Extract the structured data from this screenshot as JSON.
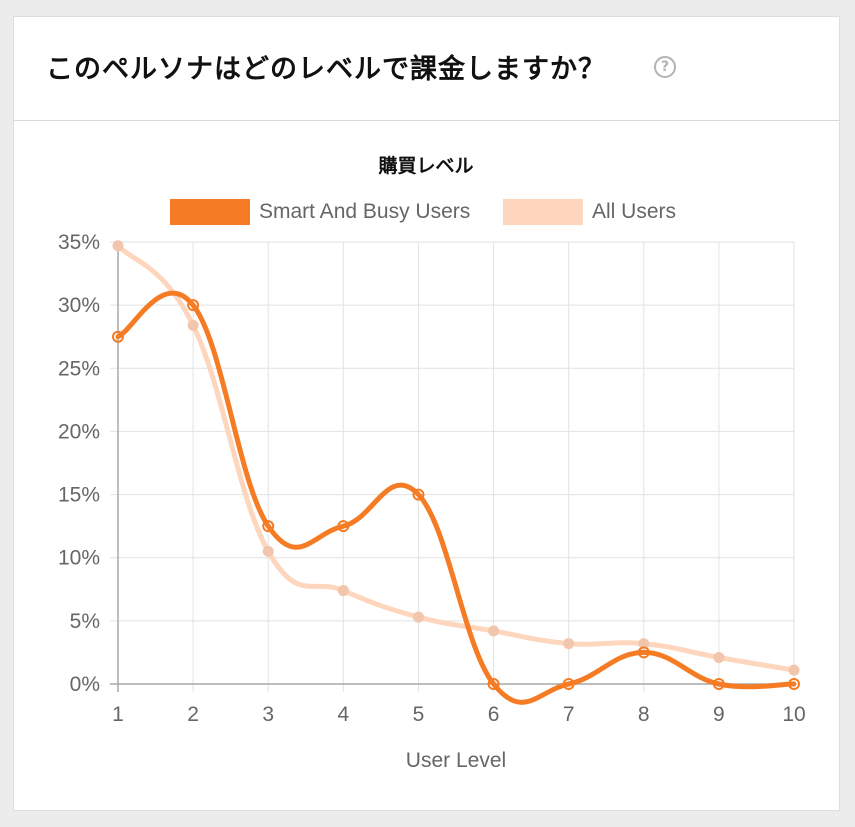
{
  "card": {
    "title": "このペルソナはどのレベルで課金しますか？",
    "help_icon": "question-circle-icon",
    "help_glyph": "?"
  },
  "chart_data": {
    "type": "line",
    "title": "購買レベル",
    "xlabel": "User Level",
    "ylabel": "",
    "x": [
      1,
      2,
      3,
      4,
      5,
      6,
      7,
      8,
      9,
      10
    ],
    "ylim": [
      0,
      35
    ],
    "yticks": [
      0,
      5,
      10,
      15,
      20,
      25,
      30,
      35
    ],
    "ytick_labels": [
      "0%",
      "5%",
      "10%",
      "15%",
      "20%",
      "25%",
      "30%",
      "35%"
    ],
    "grid": true,
    "legend_position": "top",
    "series": [
      {
        "name": "Smart And Busy Users",
        "color": "#f57c24",
        "values": [
          27.5,
          30,
          12.5,
          12.5,
          15,
          0,
          0,
          2.5,
          0,
          0
        ]
      },
      {
        "name": "All Users",
        "color": "#fdd6bd",
        "values": [
          34.7,
          28.4,
          10.5,
          7.4,
          5.3,
          4.2,
          3.2,
          3.2,
          2.1,
          1.1
        ]
      }
    ]
  }
}
